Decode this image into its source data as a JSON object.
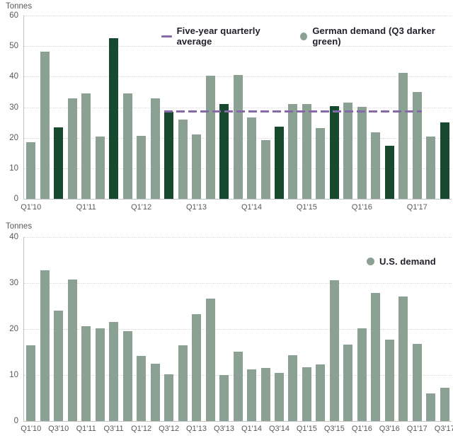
{
  "colors": {
    "bar_light_green": "#8ba193",
    "bar_dark_green": "#17492f",
    "average_line_purple": "#8669a9",
    "gridline": "#d8d8d8",
    "axis_line": "#c3c3c3",
    "tick_text": "#595959",
    "legend_text": "#21212b"
  },
  "chart_data": [
    {
      "type": "bar",
      "title": "",
      "ylabel": "Tonnes",
      "xlabel": "",
      "ylim": [
        0,
        60
      ],
      "yticks": [
        0,
        10,
        20,
        30,
        40,
        50,
        60
      ],
      "grid": true,
      "x_label_every": 4,
      "visible_xticklabels": [
        "Q1'10",
        "Q1'11",
        "Q1'12",
        "Q1'13",
        "Q1'14",
        "Q1'15",
        "Q1'16",
        "Q1'17"
      ],
      "categories": [
        "Q1'10",
        "Q2'10",
        "Q3'10",
        "Q4'10",
        "Q1'11",
        "Q2'11",
        "Q3'11",
        "Q4'11",
        "Q1'12",
        "Q2'12",
        "Q3'12",
        "Q4'12",
        "Q1'13",
        "Q2'13",
        "Q3'13",
        "Q4'13",
        "Q1'14",
        "Q2'14",
        "Q3'14",
        "Q4'14",
        "Q1'15",
        "Q2'15",
        "Q3'15",
        "Q4'15",
        "Q1'16",
        "Q2'16",
        "Q3'16",
        "Q4'16",
        "Q1'17",
        "Q2'17",
        "Q3'17"
      ],
      "values": [
        18.5,
        48.3,
        23.3,
        33.0,
        34.5,
        20.5,
        52.5,
        34.6,
        20.7,
        32.9,
        28.4,
        26.0,
        21.2,
        40.3,
        31.1,
        40.6,
        26.7,
        19.2,
        23.7,
        31.0,
        31.0,
        23.2,
        30.3,
        31.6,
        30.1,
        21.8,
        17.3,
        41.2,
        35.0,
        20.4,
        25.1
      ],
      "q3_darker": true,
      "legend_position": "top-center-inside",
      "legend": [
        {
          "label": "Five-year quarterly average",
          "swatch": "line",
          "color": "#8669a9"
        },
        {
          "label": "German demand (Q3 darker green)",
          "swatch": "dot",
          "color": "#8ba193"
        }
      ],
      "average_line": {
        "value": 28.7,
        "start_index": 10,
        "end_index": 28,
        "color": "#8669a9"
      }
    },
    {
      "type": "bar",
      "title": "",
      "ylabel": "Tonnes",
      "xlabel": "",
      "ylim": [
        0,
        40
      ],
      "yticks": [
        0,
        10,
        20,
        30,
        40
      ],
      "grid": true,
      "x_label_every": 2,
      "visible_xticklabels": [
        "Q1'10",
        "Q3'10",
        "Q1'11",
        "Q3'11",
        "Q1'12",
        "Q3'12",
        "Q1'13",
        "Q3'13",
        "Q1'14",
        "Q3'14",
        "Q1'15",
        "Q3'15",
        "Q1'16",
        "Q3'16",
        "Q1'17",
        "Q3'17"
      ],
      "categories": [
        "Q1'10",
        "Q2'10",
        "Q3'10",
        "Q4'10",
        "Q1'11",
        "Q2'11",
        "Q3'11",
        "Q4'11",
        "Q1'12",
        "Q2'12",
        "Q3'12",
        "Q4'12",
        "Q1'13",
        "Q2'13",
        "Q3'13",
        "Q4'13",
        "Q1'14",
        "Q2'14",
        "Q3'14",
        "Q4'14",
        "Q1'15",
        "Q2'15",
        "Q3'15",
        "Q4'15",
        "Q1'16",
        "Q2'16",
        "Q3'16",
        "Q4'16",
        "Q1'17",
        "Q2'17",
        "Q3'17"
      ],
      "values": [
        16.5,
        32.8,
        24.0,
        30.8,
        20.6,
        20.2,
        21.6,
        19.6,
        14.1,
        12.4,
        10.2,
        16.4,
        23.3,
        26.6,
        10.0,
        15.1,
        11.3,
        11.5,
        10.5,
        14.3,
        11.7,
        12.3,
        30.7,
        16.7,
        20.1,
        27.8,
        17.7,
        27.1,
        16.8,
        6.0,
        7.2
      ],
      "q3_darker": false,
      "legend_position": "upper-right-inside",
      "legend": [
        {
          "label": "U.S. demand",
          "swatch": "dot",
          "color": "#8ba193"
        }
      ]
    }
  ]
}
